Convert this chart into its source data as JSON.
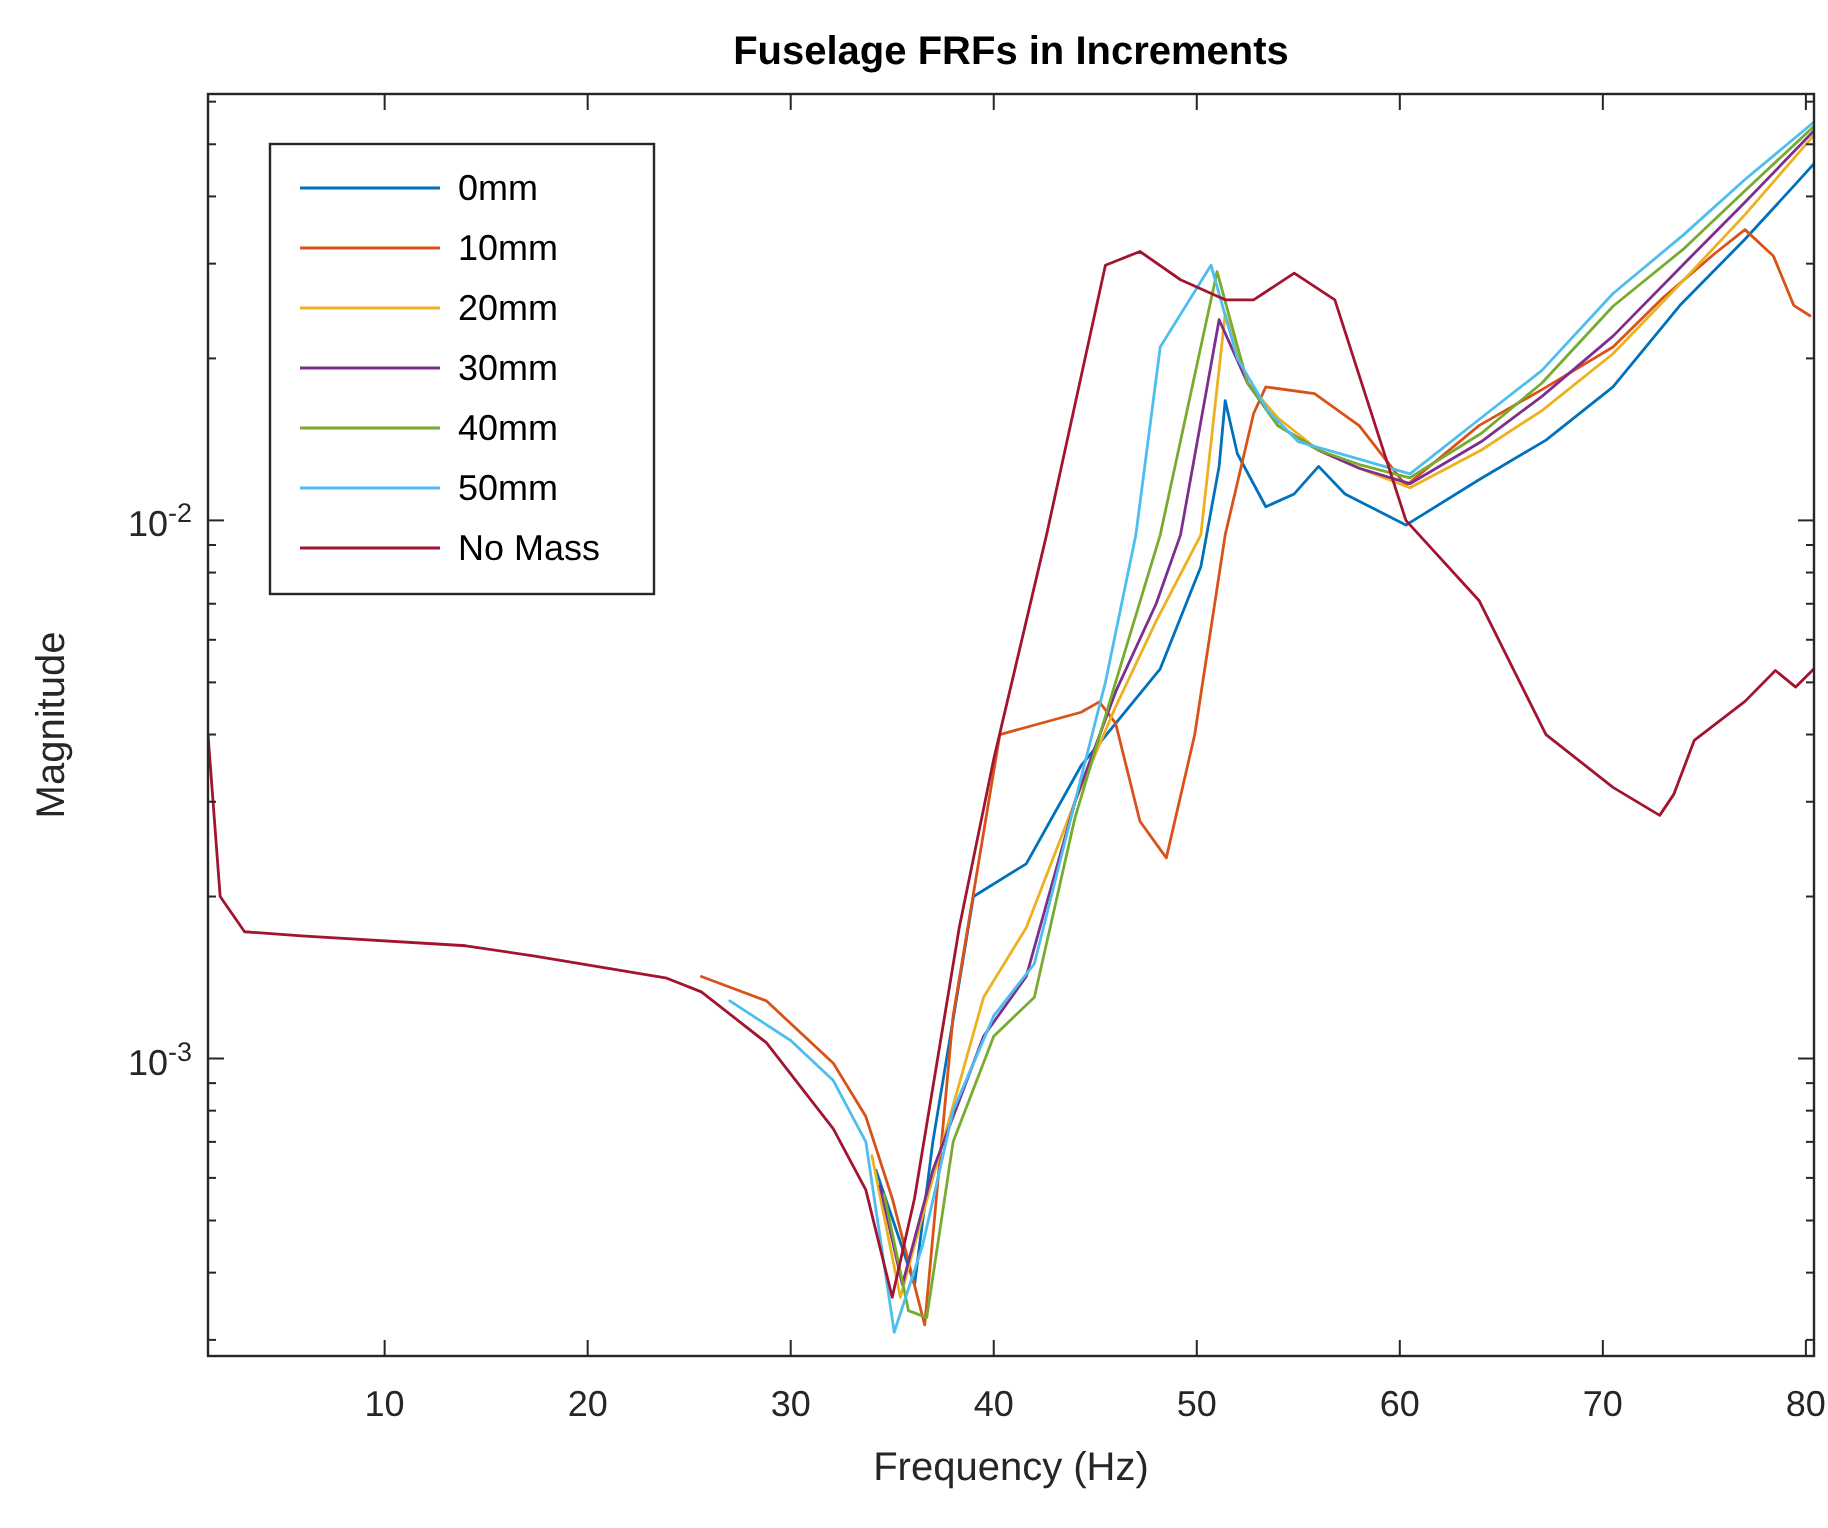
{
  "chart_data": {
    "type": "line",
    "title": "Fuselage FRFs in Increments",
    "xlabel": "Frequency (Hz)",
    "ylabel": "Magnitude",
    "log": "y",
    "grid": false,
    "legend": "top left",
    "xlim": [
      1.3,
      80.4
    ],
    "xticks": [
      10,
      20,
      30,
      40,
      50,
      60,
      70,
      80
    ],
    "ylim": [
      0.00028,
      0.062
    ],
    "yticks": [
      {
        "value": 0.0003,
        "label": null
      },
      {
        "value": 0.0004,
        "label": null
      },
      {
        "value": 0.0005,
        "label": null
      },
      {
        "value": 0.0006,
        "label": null
      },
      {
        "value": 0.0007,
        "label": null
      },
      {
        "value": 0.0008,
        "label": null
      },
      {
        "value": 0.0009,
        "label": null
      },
      {
        "value": 0.001,
        "label": "10$^{-3}$"
      },
      {
        "value": 0.002,
        "label": null
      },
      {
        "value": 0.003,
        "label": null
      },
      {
        "value": 0.004,
        "label": null
      },
      {
        "value": 0.005,
        "label": null
      },
      {
        "value": 0.006,
        "label": null
      },
      {
        "value": 0.007,
        "label": null
      },
      {
        "value": 0.008,
        "label": null
      },
      {
        "value": 0.009,
        "label": null
      },
      {
        "value": 0.01,
        "label": "10$^{-2}$"
      },
      {
        "value": 0.02,
        "label": null
      },
      {
        "value": 0.03,
        "label": null
      },
      {
        "value": 0.04,
        "label": null
      },
      {
        "value": 0.05,
        "label": null
      },
      {
        "value": 0.06,
        "label": null
      }
    ],
    "series": [
      {
        "name": "0mm",
        "color": "#0072bd",
        "x": [
          34.2,
          35.2,
          36.1,
          37,
          39,
          41.6,
          44.3,
          48.2,
          50.2,
          51.1,
          51.4,
          52,
          53.4,
          54.8,
          56,
          57.3,
          60.3,
          63.9,
          67.2,
          70.5,
          73.8,
          77,
          79.4,
          80.4
        ],
        "values": [
          0.00062,
          0.00048,
          0.00038,
          0.0007,
          0.002,
          0.0023,
          0.0035,
          0.0053,
          0.0082,
          0.0126,
          0.0167,
          0.0133,
          0.0106,
          0.0112,
          0.0126,
          0.0112,
          0.0098,
          0.0119,
          0.0141,
          0.0177,
          0.0251,
          0.0333,
          0.0418,
          0.046
        ]
      },
      {
        "name": "10mm",
        "color": "#d95319",
        "x": [
          25.6,
          28.8,
          32.1,
          33.7,
          35,
          36.6,
          38,
          40.3,
          44.3,
          45.2,
          46,
          47.2,
          48.5,
          49.9,
          51.4,
          52.8,
          53.4,
          55.8,
          58,
          60.3,
          63.9,
          67,
          70.5,
          73,
          75.5,
          77,
          78.4,
          79.4,
          80.2
        ],
        "values": [
          0.00142,
          0.00128,
          0.00098,
          0.00078,
          0.00055,
          0.00032,
          0.0012,
          0.004,
          0.0044,
          0.0046,
          0.0042,
          0.00276,
          0.00236,
          0.004,
          0.0094,
          0.0158,
          0.0177,
          0.0172,
          0.015,
          0.0116,
          0.015,
          0.0175,
          0.021,
          0.026,
          0.0313,
          0.0347,
          0.031,
          0.0251,
          0.024
        ]
      },
      {
        "name": "20mm",
        "color": "#edb120",
        "x": [
          34,
          35.4,
          37,
          39.5,
          41.6,
          44,
          46,
          48,
          50.2,
          51.4,
          52.5,
          54,
          56,
          58,
          60.5,
          64,
          67,
          70.5,
          74,
          77,
          80.4
        ],
        "values": [
          0.00066,
          0.00036,
          0.0006,
          0.0013,
          0.00175,
          0.003,
          0.0045,
          0.0065,
          0.0094,
          0.0242,
          0.018,
          0.0155,
          0.0135,
          0.0125,
          0.0115,
          0.0135,
          0.016,
          0.0204,
          0.028,
          0.037,
          0.052
        ]
      },
      {
        "name": "30mm",
        "color": "#7e2f8e",
        "x": [
          34.4,
          35.5,
          37,
          39.5,
          41.6,
          44,
          46,
          48,
          49.2,
          51.1,
          52.5,
          54,
          56,
          58,
          60.5,
          64,
          67,
          70.5,
          74,
          77,
          80.4
        ],
        "values": [
          0.00058,
          0.00038,
          0.00062,
          0.0011,
          0.00142,
          0.003,
          0.0048,
          0.007,
          0.0094,
          0.0236,
          0.018,
          0.015,
          0.0135,
          0.0125,
          0.0117,
          0.014,
          0.017,
          0.022,
          0.03,
          0.039,
          0.053
        ]
      },
      {
        "name": "40mm",
        "color": "#77ac30",
        "x": [
          34.6,
          35.8,
          36.7,
          38,
          40,
          42,
          44,
          46,
          48.2,
          51,
          52.5,
          54,
          56,
          58,
          60.5,
          64,
          67,
          70.5,
          74,
          77,
          80.4
        ],
        "values": [
          0.00056,
          0.00034,
          0.00033,
          0.0007,
          0.0011,
          0.0013,
          0.0028,
          0.005,
          0.0094,
          0.029,
          0.018,
          0.015,
          0.0135,
          0.0127,
          0.012,
          0.0145,
          0.018,
          0.025,
          0.032,
          0.041,
          0.054
        ]
      },
      {
        "name": "50mm",
        "color": "#4dbeee",
        "x": [
          27,
          30,
          32.1,
          33.7,
          35.1,
          36.5,
          38,
          40,
          42,
          44,
          45.5,
          47,
          48.2,
          50.7,
          52,
          53.5,
          55,
          58,
          60.5,
          64,
          67,
          70.5,
          74,
          77,
          80.4
        ],
        "values": [
          0.00128,
          0.00108,
          0.00091,
          0.0007,
          0.00031,
          0.00045,
          0.0008,
          0.0012,
          0.0015,
          0.003,
          0.005,
          0.0094,
          0.021,
          0.0298,
          0.02,
          0.016,
          0.014,
          0.013,
          0.0122,
          0.0155,
          0.019,
          0.0264,
          0.034,
          0.043,
          0.055
        ]
      },
      {
        "name": "No Mass",
        "color": "#a2142f",
        "x": [
          1.3,
          1.9,
          3.1,
          5.9,
          14,
          17.4,
          23.9,
          25.6,
          28.8,
          32.1,
          33.7,
          35,
          36.1,
          38.3,
          40,
          42.6,
          45.5,
          47.2,
          49.2,
          51.4,
          52.8,
          54.8,
          56.8,
          60.3,
          63.9,
          67.2,
          70.5,
          72.8,
          73.5,
          74.5,
          77,
          78.5,
          79.5,
          80.4
        ],
        "values": [
          0.004,
          0.002,
          0.00172,
          0.00169,
          0.00162,
          0.00155,
          0.00141,
          0.00133,
          0.00107,
          0.00074,
          0.00057,
          0.00036,
          0.00055,
          0.00175,
          0.0036,
          0.0094,
          0.0298,
          0.0316,
          0.028,
          0.0257,
          0.0257,
          0.0288,
          0.0257,
          0.01,
          0.0071,
          0.004,
          0.00319,
          0.00283,
          0.0031,
          0.0039,
          0.00461,
          0.00526,
          0.0049,
          0.0053
        ]
      }
    ]
  }
}
